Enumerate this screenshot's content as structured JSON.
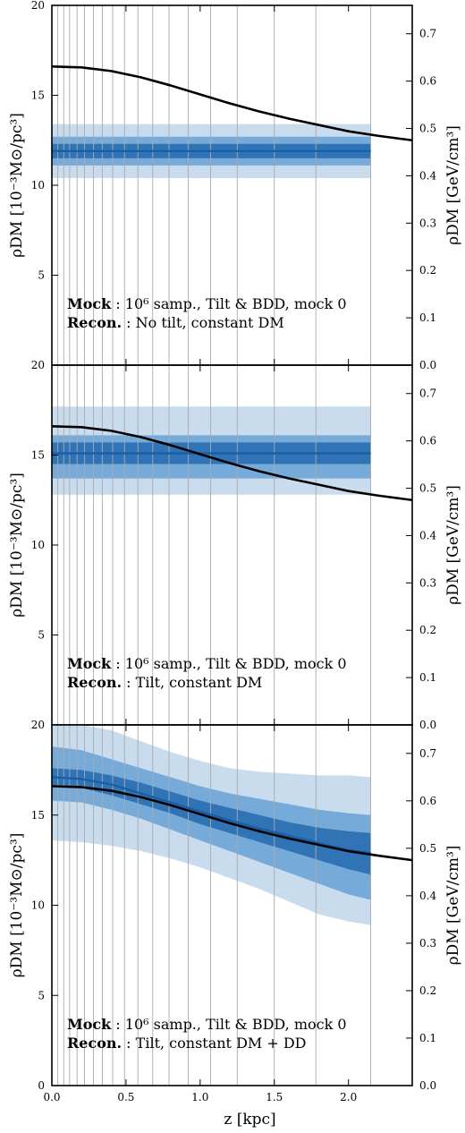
{
  "chart_data": [
    {
      "type": "line",
      "panel": "top",
      "x_range": [
        0.0,
        2.43
      ],
      "ylim_left": [
        0,
        20
      ],
      "ylim_right": [
        0.0,
        0.76
      ],
      "left_ticks": [
        "5",
        "10",
        "15",
        "20"
      ],
      "right_ticks": [
        "0.0",
        "0.1",
        "0.2",
        "0.3",
        "0.4",
        "0.5",
        "0.6",
        "0.7"
      ],
      "ylabel_left": "ρDM  [10⁻³M⊙/pc³]",
      "ylabel_right": "ρDM  [GeV/cm³]",
      "annotation": {
        "line1_bold": "Mock",
        "line1_rest": " : 10⁶ samp., Tilt & BDD, mock 0",
        "line2_bold": "Recon.",
        "line2_rest": " : No tilt, constant DM"
      },
      "true_curve": {
        "x": [
          0.0,
          0.2,
          0.4,
          0.6,
          0.8,
          1.0,
          1.2,
          1.4,
          1.6,
          1.8,
          2.0,
          2.2,
          2.43
        ],
        "y": [
          16.6,
          16.55,
          16.35,
          16.0,
          15.55,
          15.05,
          14.55,
          14.1,
          13.7,
          13.35,
          13.0,
          12.75,
          12.5
        ]
      },
      "recon": {
        "x": [
          0.0,
          2.15
        ],
        "median": [
          11.9,
          11.9
        ],
        "band1": [
          [
            11.5,
            12.3
          ],
          [
            11.5,
            12.3
          ]
        ],
        "band2": [
          [
            11.1,
            12.7
          ],
          [
            11.1,
            12.7
          ]
        ],
        "band3": [
          [
            10.4,
            13.4
          ],
          [
            10.4,
            13.4
          ]
        ]
      },
      "vlines_x": [
        0.0,
        0.04,
        0.08,
        0.12,
        0.17,
        0.22,
        0.28,
        0.34,
        0.41,
        0.49,
        0.58,
        0.68,
        0.79,
        0.92,
        1.07,
        1.25,
        1.5,
        1.78,
        2.15
      ]
    },
    {
      "type": "line",
      "panel": "middle",
      "x_range": [
        0.0,
        2.43
      ],
      "ylim_left": [
        0,
        20
      ],
      "ylim_right": [
        0.0,
        0.76
      ],
      "left_ticks": [
        "5",
        "10",
        "15",
        "20"
      ],
      "right_ticks": [
        "0.0",
        "0.1",
        "0.2",
        "0.3",
        "0.4",
        "0.5",
        "0.6",
        "0.7"
      ],
      "ylabel_left": "ρDM  [10⁻³M⊙/pc³]",
      "ylabel_right": "ρDM  [GeV/cm³]",
      "annotation": {
        "line1_bold": "Mock",
        "line1_rest": " : 10⁶ samp., Tilt & BDD, mock 0",
        "line2_bold": "Recon.",
        "line2_rest": " : Tilt, constant DM"
      },
      "true_curve": {
        "x": [
          0.0,
          0.2,
          0.4,
          0.6,
          0.8,
          1.0,
          1.2,
          1.4,
          1.6,
          1.8,
          2.0,
          2.2,
          2.43
        ],
        "y": [
          16.6,
          16.55,
          16.35,
          16.0,
          15.55,
          15.05,
          14.55,
          14.1,
          13.7,
          13.35,
          13.0,
          12.75,
          12.5
        ]
      },
      "recon": {
        "x": [
          0.0,
          2.15
        ],
        "median": [
          15.1,
          15.1
        ],
        "band1": [
          [
            14.5,
            15.7
          ],
          [
            14.5,
            15.7
          ]
        ],
        "band2": [
          [
            13.7,
            16.1
          ],
          [
            13.7,
            16.1
          ]
        ],
        "band3": [
          [
            12.8,
            17.7
          ],
          [
            12.8,
            17.7
          ]
        ]
      },
      "vlines_x": [
        0.0,
        0.04,
        0.08,
        0.12,
        0.17,
        0.22,
        0.28,
        0.34,
        0.41,
        0.49,
        0.58,
        0.68,
        0.79,
        0.92,
        1.07,
        1.25,
        1.5,
        1.78,
        2.15
      ]
    },
    {
      "type": "line",
      "panel": "bottom",
      "x_range": [
        0.0,
        2.43
      ],
      "ylim_left": [
        0,
        20
      ],
      "ylim_right": [
        0.0,
        0.76
      ],
      "left_ticks": [
        "0",
        "5",
        "10",
        "15",
        "20"
      ],
      "right_ticks": [
        "0.0",
        "0.1",
        "0.2",
        "0.3",
        "0.4",
        "0.5",
        "0.6",
        "0.7"
      ],
      "xticks": [
        "0.0",
        "0.5",
        "1.0",
        "1.5",
        "2.0"
      ],
      "xtick_values": [
        0.0,
        0.5,
        1.0,
        1.5,
        2.0
      ],
      "xlabel": "z  [kpc]",
      "ylabel_left": "ρDM  [10⁻³M⊙/pc³]",
      "ylabel_right": "ρDM  [GeV/cm³]",
      "annotation": {
        "line1_bold": "Mock",
        "line1_rest": " : 10⁶ samp., Tilt & BDD, mock 0",
        "line2_bold": "Recon.",
        "line2_rest": " : Tilt, constant DM + DD"
      },
      "true_curve": {
        "x": [
          0.0,
          0.2,
          0.4,
          0.6,
          0.8,
          1.0,
          1.2,
          1.4,
          1.6,
          1.8,
          2.0,
          2.2,
          2.43
        ],
        "y": [
          16.6,
          16.55,
          16.35,
          16.0,
          15.55,
          15.05,
          14.55,
          14.1,
          13.7,
          13.35,
          13.0,
          12.75,
          12.5
        ]
      },
      "recon": {
        "x": [
          0.0,
          0.2,
          0.4,
          0.6,
          0.8,
          1.0,
          1.2,
          1.4,
          1.6,
          1.8,
          2.0,
          2.15
        ],
        "median": [
          17.1,
          17.0,
          16.7,
          16.2,
          15.7,
          15.2,
          14.7,
          14.25,
          13.85,
          13.45,
          13.05,
          12.9
        ],
        "band1": [
          [
            16.6,
            17.6
          ],
          [
            16.5,
            17.5
          ],
          [
            16.1,
            17.2
          ],
          [
            15.6,
            16.8
          ],
          [
            15.1,
            16.3
          ],
          [
            14.5,
            15.8
          ],
          [
            14.0,
            15.4
          ],
          [
            13.5,
            15.0
          ],
          [
            13.0,
            14.6
          ],
          [
            12.5,
            14.3
          ],
          [
            12.0,
            14.1
          ],
          [
            11.7,
            14.0
          ]
        ],
        "band2": [
          [
            15.8,
            18.8
          ],
          [
            15.7,
            18.6
          ],
          [
            15.3,
            18.1
          ],
          [
            14.8,
            17.6
          ],
          [
            14.2,
            17.1
          ],
          [
            13.6,
            16.6
          ],
          [
            13.0,
            16.2
          ],
          [
            12.4,
            15.9
          ],
          [
            11.8,
            15.6
          ],
          [
            11.2,
            15.3
          ],
          [
            10.6,
            15.1
          ],
          [
            10.3,
            15.0
          ]
        ],
        "band3": [
          [
            13.6,
            20.0
          ],
          [
            13.5,
            20.0
          ],
          [
            13.3,
            19.7
          ],
          [
            13.0,
            19.1
          ],
          [
            12.6,
            18.5
          ],
          [
            12.1,
            18.0
          ],
          [
            11.5,
            17.6
          ],
          [
            10.9,
            17.4
          ],
          [
            10.2,
            17.3
          ],
          [
            9.5,
            17.2
          ],
          [
            9.1,
            17.2
          ],
          [
            8.9,
            17.1
          ]
        ]
      },
      "vlines_x": [
        0.0,
        0.04,
        0.08,
        0.12,
        0.17,
        0.22,
        0.28,
        0.34,
        0.41,
        0.49,
        0.58,
        0.68,
        0.79,
        0.92,
        1.07,
        1.25,
        1.5,
        1.78,
        2.15
      ]
    }
  ],
  "colors": {
    "band1": "#2166ac",
    "band2": "#5a9bd1",
    "band3": "#c9dcee",
    "median": "#1560a8",
    "true_curve": "#000000",
    "vlines": "#aaaaaa"
  }
}
